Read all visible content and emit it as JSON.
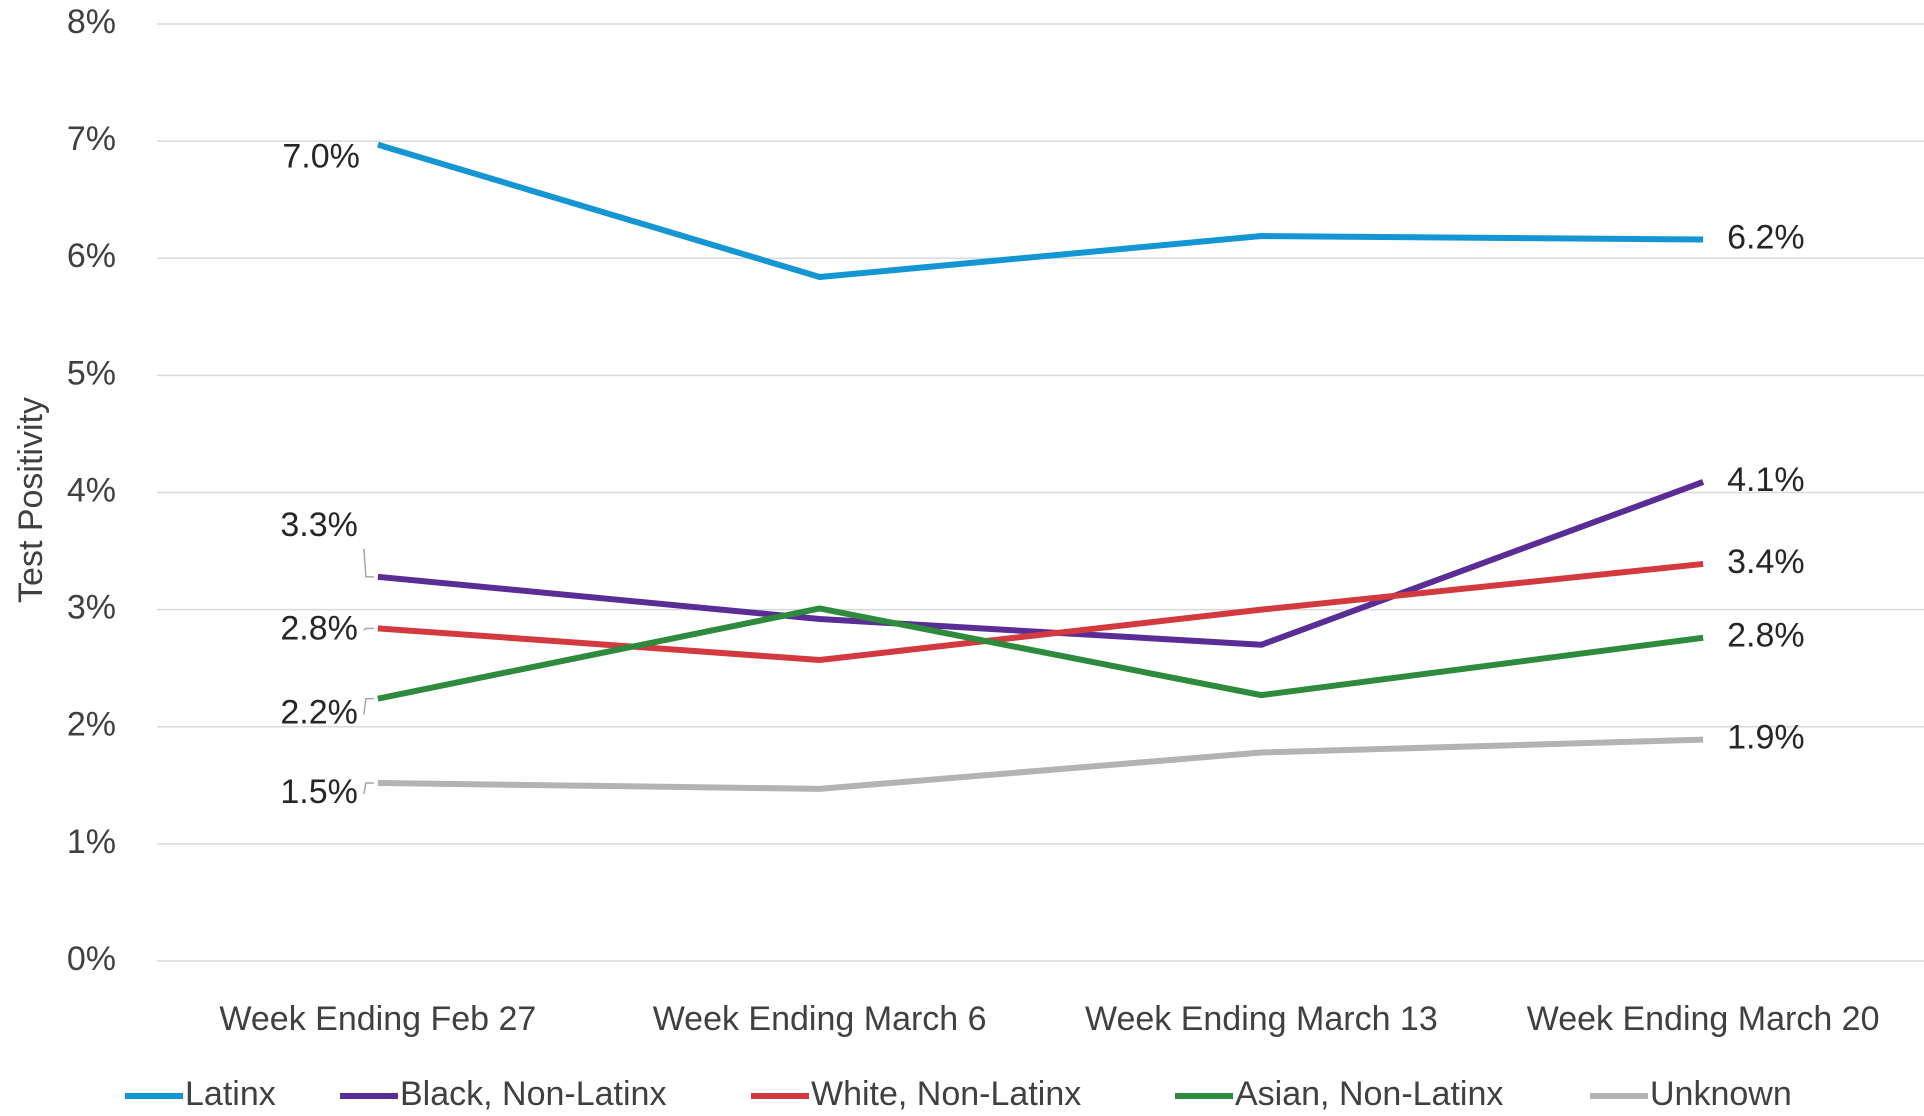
{
  "chart_data": {
    "type": "line",
    "y_label": "Test Positivity",
    "categories": [
      "Week Ending Feb 27",
      "Week Ending March 6",
      "Week Ending March 13",
      "Week Ending March 20"
    ],
    "series": [
      {
        "name": "Latinx",
        "color": "#1496d4",
        "values": [
          6.97,
          5.84,
          6.19,
          6.16
        ],
        "value_labels": [
          "7.0%",
          null,
          null,
          "6.2%"
        ]
      },
      {
        "name": "Black, Non-Latinx",
        "color": "#5a2d96",
        "values": [
          3.28,
          2.92,
          2.7,
          4.09
        ],
        "value_labels": [
          "3.3%",
          null,
          null,
          "4.1%"
        ]
      },
      {
        "name": "White, Non-Latinx",
        "color": "#d23a3f",
        "values": [
          2.84,
          2.57,
          3.0,
          3.39
        ],
        "value_labels": [
          "2.8%",
          null,
          null,
          "3.4%"
        ]
      },
      {
        "name": "Asian, Non-Latinx",
        "color": "#2e8b3e",
        "values": [
          2.24,
          3.01,
          2.27,
          2.76
        ],
        "value_labels": [
          "2.2%",
          null,
          null,
          "2.8%"
        ]
      },
      {
        "name": "Unknown",
        "color": "#b3b3b3",
        "values": [
          1.52,
          1.47,
          1.78,
          1.89
        ],
        "value_labels": [
          "1.5%",
          null,
          null,
          "1.9%"
        ]
      }
    ],
    "ylim": [
      0,
      8
    ],
    "yticks": [
      {
        "value": 0,
        "label": "0%"
      },
      {
        "value": 1,
        "label": "1%"
      },
      {
        "value": 2,
        "label": "2%"
      },
      {
        "value": 3,
        "label": "3%"
      },
      {
        "value": 4,
        "label": "4%"
      },
      {
        "value": 5,
        "label": "5%"
      },
      {
        "value": 6,
        "label": "6%"
      },
      {
        "value": 7,
        "label": "7%"
      },
      {
        "value": 8,
        "label": "8%"
      }
    ],
    "grid": true,
    "legend": "bottom"
  }
}
